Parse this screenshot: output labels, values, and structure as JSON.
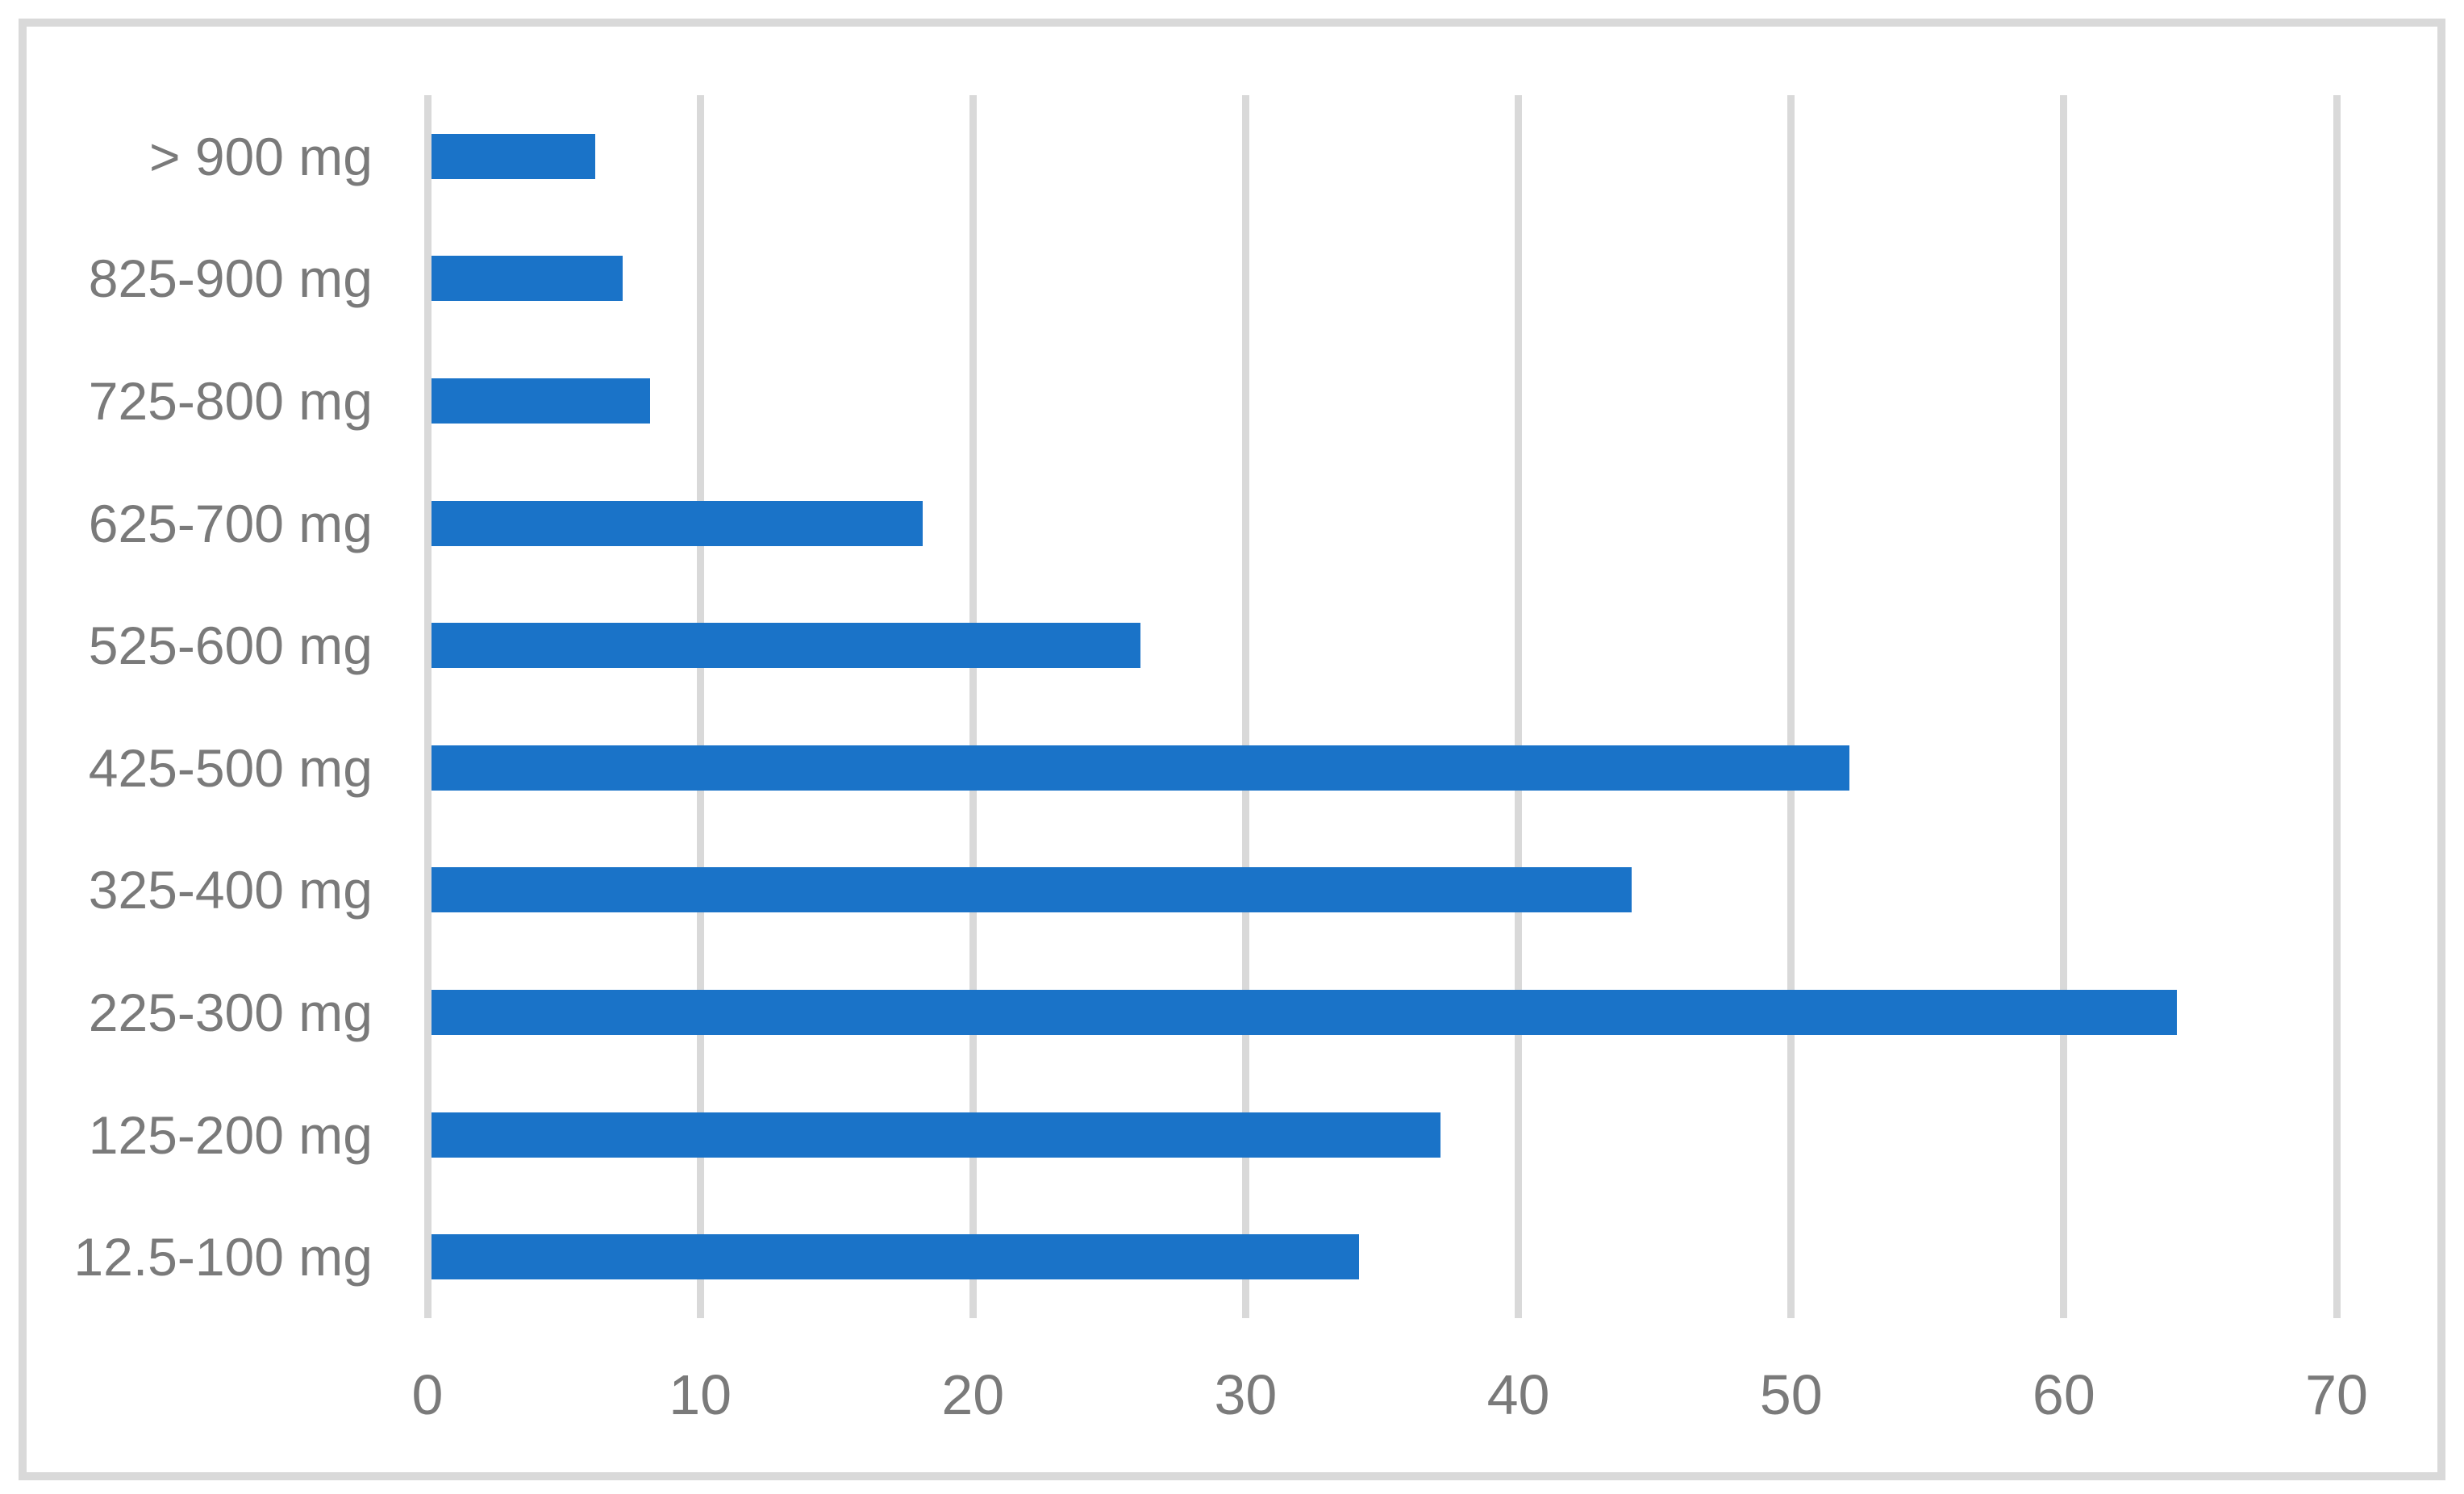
{
  "chart_data": {
    "type": "bar",
    "orientation": "horizontal",
    "title": "",
    "xlabel": "",
    "ylabel": "",
    "categories": [
      "> 900 mg",
      "825-900 mg",
      "725-800 mg",
      "625-700 mg",
      "525-600 mg",
      "425-500 mg",
      "325-400 mg",
      "225-300 mg",
      "125-200 mg",
      "12.5-100 mg"
    ],
    "values": [
      6,
      7,
      8,
      18,
      26,
      52,
      44,
      64,
      37,
      34
    ],
    "x_ticks": [
      0,
      10,
      20,
      30,
      40,
      50,
      60,
      70
    ],
    "xlim": [
      0,
      70
    ],
    "grid": "vertical-only",
    "legend": "none",
    "colors": {
      "bar": "#1A73C8",
      "gridline": "#D9D9D9",
      "frame_border": "#D9D9D9",
      "text": "#7A7A7A",
      "background": "#FFFFFF"
    }
  }
}
